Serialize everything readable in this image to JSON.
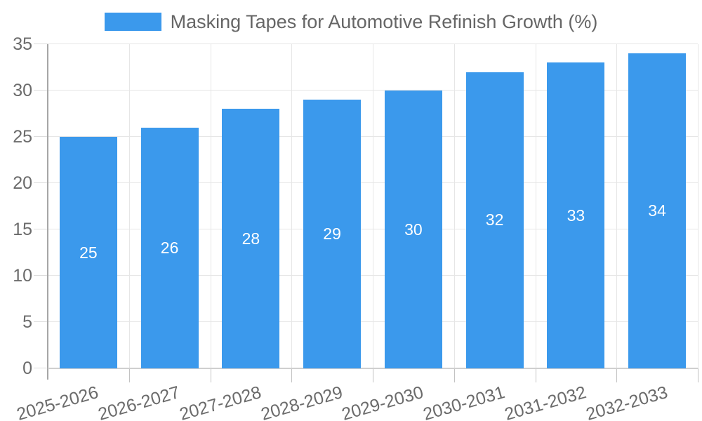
{
  "colors": {
    "bar": "#3B99EC",
    "grid": "#e6e6e6",
    "axis_line": "#a6a6a6",
    "baseline": "#cfcfcf",
    "tick_left": "#dcdcdc",
    "tick_bottom": "#c2c2c2",
    "axis_text": "#6b6b6b",
    "legend_text": "#666666",
    "value_text": "#ffffff"
  },
  "chart_data": {
    "type": "bar",
    "title": "Masking Tapes for Automotive Refinish Growth (%)",
    "categories": [
      "2025-2026",
      "2026-2027",
      "2027-2028",
      "2028-2029",
      "2029-2030",
      "2030-2031",
      "2031-2032",
      "2032-2033"
    ],
    "values": [
      25,
      26,
      28,
      29,
      30,
      32,
      33,
      34
    ],
    "xlabel": "",
    "ylabel": "",
    "ylim": [
      0,
      35
    ],
    "yticks": [
      0,
      5,
      10,
      15,
      20,
      25,
      30,
      35
    ],
    "grid": true,
    "legend_position": "top",
    "bar_label_position": "center-inside",
    "x_label_rotation_deg": -16
  }
}
